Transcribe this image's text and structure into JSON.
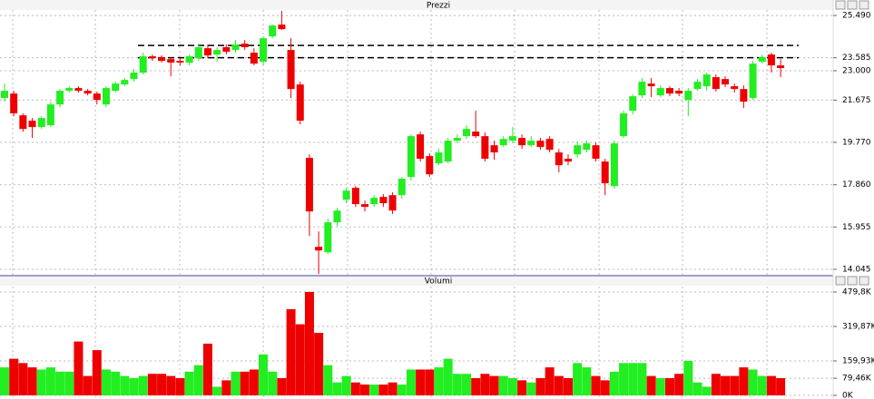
{
  "chart_data": [
    {
      "type": "candlestick",
      "title": "Prezzi",
      "up_color": "#22ee22",
      "down_color": "#ee0000",
      "ylim": [
        13800,
        25780
      ],
      "yticks": [
        {
          "value": 25490,
          "label": "25.490"
        },
        {
          "value": 23585,
          "label": "23.585"
        },
        {
          "value": 23000,
          "label": "23.000"
        },
        {
          "value": 21675,
          "label": "21.675"
        },
        {
          "value": 19770,
          "label": "19.770"
        },
        {
          "value": 17860,
          "label": "17.860"
        },
        {
          "value": 15955,
          "label": "15.955"
        },
        {
          "value": 14045,
          "label": "14.045"
        }
      ],
      "grid": true,
      "reference_lines": [
        24140,
        23585
      ],
      "open": [
        21770,
        21970,
        20990,
        20745,
        20460,
        20540,
        21480,
        22095,
        22220,
        22095,
        21970,
        21480,
        22095,
        22380,
        22625,
        22915,
        23650,
        23610,
        23525,
        23445,
        23365,
        23565,
        24015,
        23730,
        24060,
        23935,
        24220,
        23815,
        23405,
        24550,
        25080,
        23935,
        22380,
        19070,
        15060,
        14815,
        16165,
        17185,
        17720,
        16985,
        16985,
        17310,
        17390,
        17390,
        18210,
        20130,
        19150,
        18825,
        18905,
        19845,
        20050,
        20255,
        20050,
        19640,
        19640,
        19845,
        19970,
        19640,
        19845,
        19925,
        19315,
        19030,
        19230,
        19435,
        19640,
        18905,
        17800,
        20050,
        21195,
        21890,
        22420,
        21890,
        22220,
        22095,
        21685,
        22175,
        22300,
        22710,
        22625,
        22300,
        22175,
        21770,
        23405,
        23730,
        23240
      ],
      "close": [
        22095,
        21075,
        20375,
        20460,
        20870,
        21480,
        22095,
        22220,
        22095,
        21970,
        21685,
        22220,
        22420,
        22585,
        22915,
        23650,
        23565,
        23445,
        23365,
        23365,
        23650,
        24060,
        23690,
        23935,
        23855,
        24180,
        24060,
        23320,
        24465,
        25040,
        24875,
        22175,
        20745,
        16655,
        14895,
        16165,
        16695,
        17595,
        16985,
        16860,
        17270,
        17025,
        16695,
        18130,
        20050,
        19030,
        18330,
        19315,
        19845,
        19970,
        20375,
        20050,
        19030,
        19315,
        19925,
        20050,
        19640,
        19845,
        19560,
        19435,
        18740,
        18905,
        19640,
        19725,
        19030,
        17925,
        19725,
        21075,
        21850,
        22505,
        22300,
        22220,
        21970,
        21970,
        22095,
        22505,
        22830,
        22175,
        22380,
        22175,
        21605,
        23320,
        23610,
        23240,
        23120
      ],
      "high": [
        22420,
        22095,
        21075,
        20870,
        20950,
        21605,
        22175,
        22300,
        22300,
        22175,
        22055,
        22300,
        22505,
        22670,
        23075,
        23815,
        23730,
        23690,
        23610,
        23565,
        23730,
        24220,
        24180,
        24060,
        24180,
        24385,
        24385,
        24015,
        24550,
        25080,
        25695,
        24465,
        22505,
        19230,
        15755,
        16330,
        16820,
        17720,
        17800,
        17145,
        17390,
        17435,
        17515,
        18210,
        20130,
        20255,
        19275,
        19475,
        19970,
        20130,
        20540,
        21195,
        20215,
        19845,
        20050,
        20460,
        20130,
        20050,
        19970,
        20050,
        19475,
        19230,
        19805,
        19845,
        19765,
        19030,
        19845,
        21195,
        21930,
        22670,
        22670,
        22340,
        22300,
        22220,
        22220,
        22625,
        22915,
        22830,
        22750,
        22420,
        22340,
        23445,
        23730,
        23815,
        23525
      ],
      "low": [
        21605,
        20950,
        20255,
        19970,
        20375,
        20460,
        21360,
        22015,
        22015,
        21890,
        21480,
        21360,
        22015,
        22300,
        22505,
        22830,
        23445,
        23365,
        22750,
        23240,
        23240,
        23445,
        23565,
        23405,
        23730,
        23815,
        23935,
        23240,
        23240,
        24465,
        24835,
        21770,
        20580,
        15550,
        13835,
        14735,
        16000,
        17025,
        16860,
        16655,
        16860,
        16860,
        16535,
        17230,
        18045,
        18905,
        18210,
        18740,
        18825,
        19725,
        19925,
        19970,
        18905,
        18985,
        19560,
        19725,
        19475,
        19560,
        19435,
        19315,
        18415,
        18740,
        19070,
        19315,
        18905,
        17390,
        17680,
        19970,
        21030,
        21770,
        21810,
        21810,
        21850,
        21850,
        20950,
        22095,
        22095,
        22055,
        22260,
        22015,
        21320,
        21685,
        23320,
        22915,
        22710
      ]
    },
    {
      "type": "bar",
      "title": "Volumi",
      "ylim": [
        0,
        505000
      ],
      "yticks": [
        {
          "value": 479800,
          "label": "479,8K"
        },
        {
          "value": 319870,
          "label": "319,87K"
        },
        {
          "value": 159930,
          "label": "159,93K"
        },
        {
          "value": 79460,
          "label": "79,46K"
        },
        {
          "value": 0,
          "label": "0K"
        }
      ],
      "grid": true,
      "values": [
        130000,
        170000,
        150000,
        130000,
        120000,
        130000,
        110000,
        110000,
        250000,
        90000,
        210000,
        120000,
        110000,
        90000,
        80000,
        90000,
        100000,
        100000,
        90000,
        80000,
        110000,
        140000,
        240000,
        40000,
        70000,
        110000,
        110000,
        120000,
        190000,
        110000,
        80000,
        400000,
        330000,
        480000,
        290000,
        140000,
        60000,
        90000,
        60000,
        50000,
        50000,
        50000,
        60000,
        50000,
        120000,
        120000,
        120000,
        130000,
        170000,
        100000,
        100000,
        80000,
        100000,
        90000,
        90000,
        80000,
        70000,
        60000,
        80000,
        130000,
        90000,
        80000,
        150000,
        130000,
        90000,
        70000,
        110000,
        150000,
        150000,
        150000,
        90000,
        80000,
        80000,
        100000,
        160000,
        60000,
        40000,
        100000,
        90000,
        90000,
        130000,
        120000,
        90000,
        90000,
        80000
      ]
    }
  ]
}
